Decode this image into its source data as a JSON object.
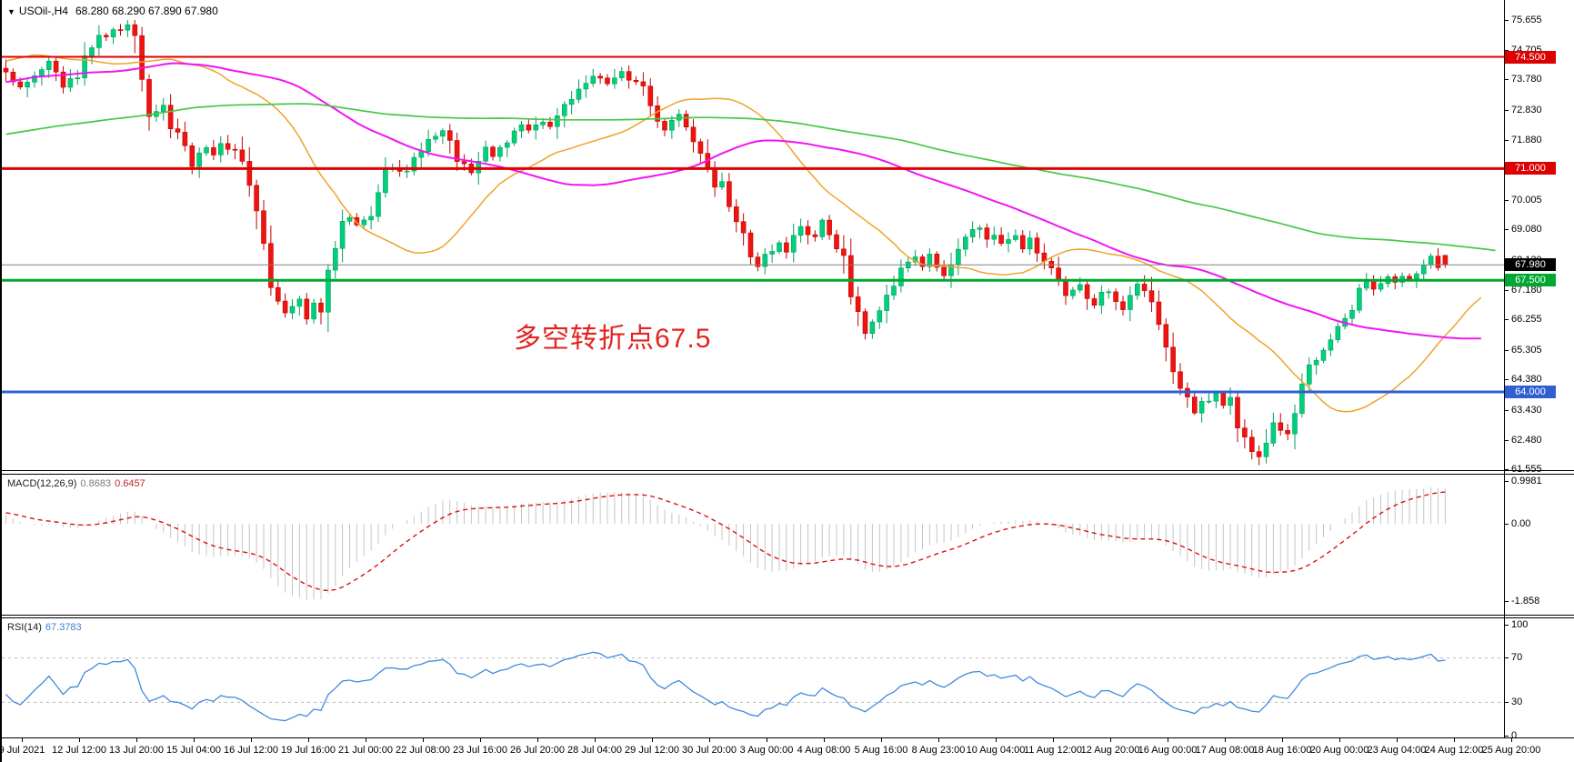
{
  "header": {
    "dropdown_icon": "▼",
    "symbol": "USOil-,H4",
    "ohlc": "68.280 68.290 67.890 67.980"
  },
  "annotation": {
    "text": "多空转折点67.5",
    "color": "#e32220"
  },
  "main_chart": {
    "y_axis_ticks": [
      75.655,
      74.705,
      73.78,
      72.83,
      71.88,
      70.93,
      70.005,
      69.08,
      68.13,
      67.18,
      66.255,
      65.305,
      64.38,
      63.43,
      62.48,
      61.555
    ]
  },
  "macd": {
    "label": "MACD(12,26,9)",
    "value_main": "0.8683",
    "value_signal": "0.6457",
    "axis_ticks": [
      "0.9981",
      "0.00",
      "-1.858"
    ],
    "histogram_color": "#c4c4c4",
    "signal_color": "#dd1111"
  },
  "rsi": {
    "label": "RSI(14)",
    "value": "67.3783",
    "axis_ticks": [
      100,
      70,
      30,
      0
    ],
    "guide_levels": [
      70,
      30
    ],
    "line_color": "#3f8add"
  },
  "time_axis": [
    "9 Jul 2021",
    "12 Jul 12:00",
    "13 Jul 20:00",
    "15 Jul 04:00",
    "16 Jul 12:00",
    "19 Jul 16:00",
    "21 Jul 00:00",
    "22 Jul 08:00",
    "23 Jul 16:00",
    "26 Jul 20:00",
    "28 Jul 04:00",
    "29 Jul 12:00",
    "30 Jul 20:00",
    "3 Aug 00:00",
    "4 Aug 08:00",
    "5 Aug 16:00",
    "8 Aug 23:00",
    "10 Aug 04:00",
    "11 Aug 12:00",
    "12 Aug 20:00",
    "16 Aug 00:00",
    "17 Aug 08:00",
    "18 Aug 16:00",
    "20 Aug 00:00",
    "23 Aug 04:00",
    "24 Aug 12:00",
    "25 Aug 20:00"
  ],
  "chart_data": {
    "type": "candlestick",
    "symbol": "USOil",
    "timeframe": "H4",
    "bars": 202,
    "y_range": [
      61.555,
      75.655
    ],
    "up_color": "#00d07c",
    "up_border": "#00a05c",
    "down_color": "#ee1410",
    "down_border": "#c40000",
    "prehistory": {
      "bars": 160,
      "start": 69.2,
      "mid": 72.6,
      "end": 74.9
    },
    "close_path_anchors": [
      [
        0,
        74.1
      ],
      [
        2,
        73.5
      ],
      [
        4,
        73.9
      ],
      [
        6,
        74.3
      ],
      [
        8,
        73.6
      ],
      [
        10,
        73.9
      ],
      [
        11,
        74.5
      ],
      [
        13,
        75.1
      ],
      [
        15,
        75.3
      ],
      [
        17,
        75.5
      ],
      [
        18,
        75.2
      ],
      [
        19,
        73.8
      ],
      [
        20,
        72.6
      ],
      [
        22,
        72.9
      ],
      [
        23,
        72.3
      ],
      [
        25,
        71.8
      ],
      [
        26,
        71.1
      ],
      [
        28,
        71.7
      ],
      [
        29,
        71.4
      ],
      [
        30,
        71.8
      ],
      [
        32,
        71.5
      ],
      [
        33,
        71.2
      ],
      [
        35,
        69.6
      ],
      [
        36,
        68.7
      ],
      [
        37,
        67.3
      ],
      [
        38,
        66.8
      ],
      [
        39,
        66.5
      ],
      [
        41,
        66.9
      ],
      [
        42,
        66.3
      ],
      [
        43,
        66.7
      ],
      [
        44,
        66.5
      ],
      [
        45,
        67.8
      ],
      [
        47,
        69.3
      ],
      [
        48,
        69.5
      ],
      [
        49,
        69.2
      ],
      [
        51,
        69.5
      ],
      [
        52,
        70.2
      ],
      [
        53,
        70.9
      ],
      [
        54,
        71.1
      ],
      [
        56,
        70.9
      ],
      [
        57,
        71.3
      ],
      [
        58,
        71.5
      ],
      [
        59,
        71.9
      ],
      [
        61,
        72.2
      ],
      [
        62,
        71.9
      ],
      [
        63,
        71.3
      ],
      [
        65,
        70.9
      ],
      [
        66,
        71.2
      ],
      [
        67,
        71.6
      ],
      [
        68,
        71.4
      ],
      [
        70,
        71.8
      ],
      [
        71,
        72.1
      ],
      [
        72,
        72.4
      ],
      [
        73,
        72.2
      ],
      [
        75,
        72.5
      ],
      [
        76,
        72.3
      ],
      [
        77,
        72.6
      ],
      [
        78,
        73.0
      ],
      [
        80,
        73.4
      ],
      [
        81,
        73.7
      ],
      [
        82,
        73.9
      ],
      [
        84,
        73.6
      ],
      [
        85,
        73.9
      ],
      [
        86,
        74.0
      ],
      [
        87,
        73.8
      ],
      [
        89,
        73.5
      ],
      [
        90,
        73.0
      ],
      [
        91,
        72.5
      ],
      [
        92,
        72.2
      ],
      [
        94,
        72.7
      ],
      [
        95,
        72.3
      ],
      [
        96,
        71.8
      ],
      [
        98,
        71.0
      ],
      [
        99,
        70.4
      ],
      [
        100,
        70.6
      ],
      [
        101,
        69.8
      ],
      [
        103,
        68.9
      ],
      [
        104,
        68.3
      ],
      [
        105,
        68.0
      ],
      [
        106,
        68.3
      ],
      [
        108,
        68.6
      ],
      [
        109,
        68.4
      ],
      [
        110,
        68.9
      ],
      [
        111,
        69.2
      ],
      [
        113,
        68.8
      ],
      [
        114,
        69.4
      ],
      [
        115,
        68.9
      ],
      [
        117,
        68.2
      ],
      [
        118,
        67.0
      ],
      [
        119,
        66.6
      ],
      [
        120,
        65.9
      ],
      [
        122,
        66.5
      ],
      [
        123,
        67.1
      ],
      [
        124,
        67.3
      ],
      [
        125,
        67.8
      ],
      [
        127,
        68.2
      ],
      [
        128,
        67.9
      ],
      [
        129,
        68.3
      ],
      [
        131,
        67.6
      ],
      [
        132,
        68.0
      ],
      [
        133,
        68.4
      ],
      [
        134,
        68.9
      ],
      [
        136,
        69.2
      ],
      [
        137,
        68.8
      ],
      [
        138,
        69.0
      ],
      [
        139,
        68.6
      ],
      [
        141,
        68.9
      ],
      [
        142,
        68.5
      ],
      [
        143,
        68.8
      ],
      [
        144,
        68.3
      ],
      [
        146,
        67.9
      ],
      [
        147,
        67.5
      ],
      [
        148,
        67.1
      ],
      [
        150,
        67.4
      ],
      [
        151,
        67.0
      ],
      [
        152,
        66.8
      ],
      [
        153,
        67.2
      ],
      [
        155,
        66.9
      ],
      [
        156,
        66.6
      ],
      [
        157,
        67.0
      ],
      [
        158,
        67.4
      ],
      [
        160,
        66.9
      ],
      [
        161,
        66.2
      ],
      [
        162,
        65.4
      ],
      [
        163,
        64.6
      ],
      [
        165,
        63.8
      ],
      [
        166,
        63.3
      ],
      [
        167,
        63.7
      ],
      [
        169,
        63.9
      ],
      [
        170,
        63.5
      ],
      [
        171,
        63.8
      ],
      [
        172,
        62.9
      ],
      [
        174,
        62.2
      ],
      [
        175,
        61.9
      ],
      [
        176,
        62.4
      ],
      [
        177,
        63.0
      ],
      [
        179,
        62.6
      ],
      [
        180,
        63.4
      ],
      [
        181,
        64.2
      ],
      [
        182,
        64.8
      ],
      [
        184,
        65.3
      ],
      [
        185,
        65.6
      ],
      [
        186,
        66.1
      ],
      [
        188,
        66.6
      ],
      [
        189,
        67.2
      ],
      [
        190,
        67.5
      ],
      [
        191,
        67.3
      ],
      [
        193,
        67.6
      ],
      [
        194,
        67.4
      ],
      [
        195,
        67.7
      ],
      [
        196,
        67.5
      ],
      [
        198,
        67.9
      ],
      [
        199,
        68.3
      ],
      [
        200,
        67.9
      ],
      [
        201,
        67.98
      ]
    ],
    "forced_points": {
      "max_high": [
        17,
        75.655
      ],
      "min_low": [
        175,
        61.7
      ],
      "last_bar": {
        "open": 68.28,
        "high": 68.29,
        "low": 67.89,
        "close": 67.98
      }
    },
    "overlays": [
      {
        "name": "ma-fast",
        "type": "sma",
        "period": 20,
        "shift": 5,
        "color": "#f0a22a",
        "width": 1.5
      },
      {
        "name": "ma-mid",
        "type": "sma",
        "period": 55,
        "shift": 5,
        "color": "#f214f2",
        "width": 2
      },
      {
        "name": "ma-slow",
        "type": "sma",
        "period": 140,
        "shift": 8,
        "color": "#46c846",
        "width": 1.7
      }
    ],
    "hlines": [
      {
        "price": 74.5,
        "label": "74.500",
        "color": "#dd0000",
        "width": 2
      },
      {
        "price": 71.0,
        "label": "71.000",
        "color": "#dd0000",
        "width": 3
      },
      {
        "price": 67.98,
        "label": "67.980",
        "color": "#808080",
        "badge": "#000000",
        "width": 1
      },
      {
        "price": 67.5,
        "label": "67.500",
        "color": "#00a832",
        "width": 3
      },
      {
        "price": 64.0,
        "label": "64.000",
        "color": "#3060d0",
        "width": 3
      }
    ]
  }
}
